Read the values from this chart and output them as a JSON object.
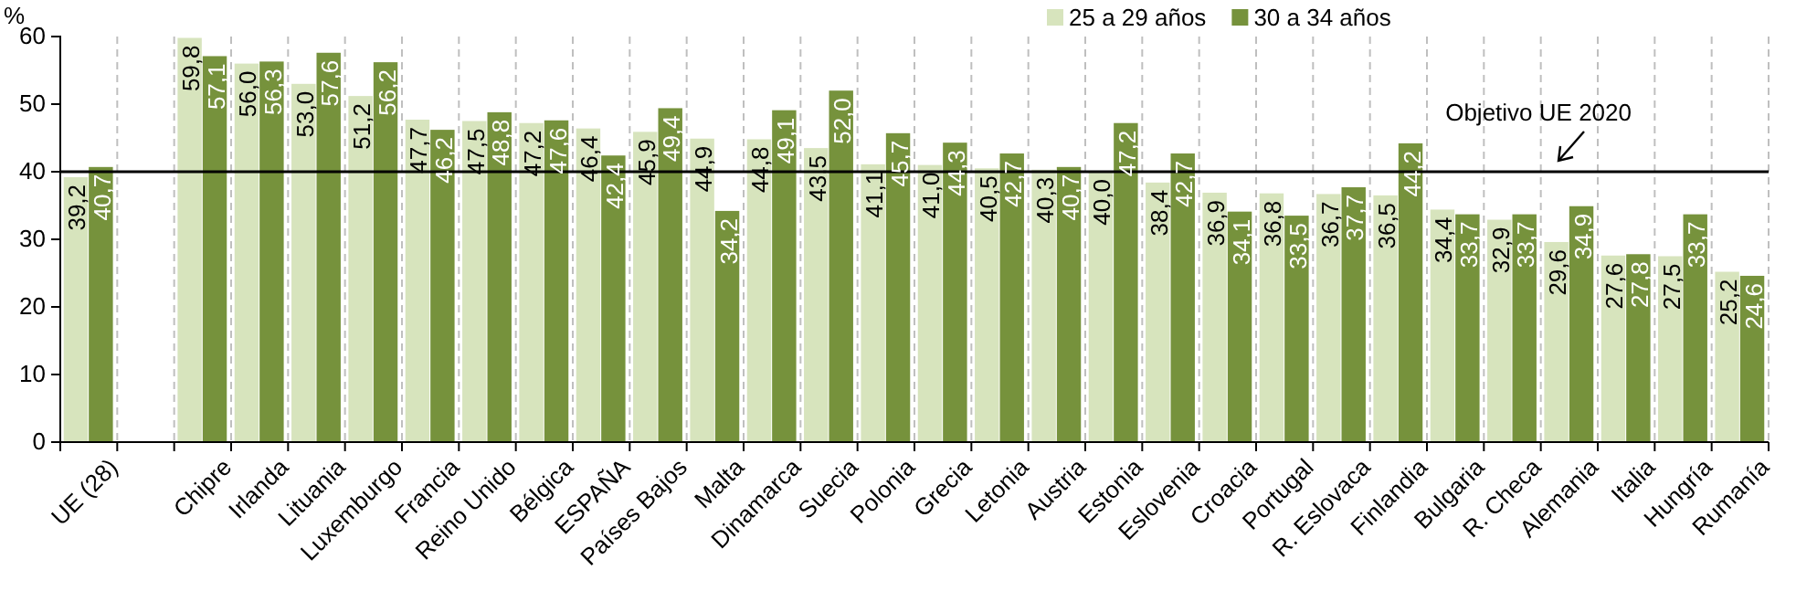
{
  "chart_data": {
    "type": "bar",
    "ylabel": "%",
    "categories": [
      "UE (28)",
      null,
      "Chipre",
      "Irlanda",
      "Lituania",
      "Luxemburgo",
      "Francia",
      "Reino Unido",
      "Bélgica",
      "ESPAÑA",
      "Países Bajos",
      "Malta",
      "Dinamarca",
      "Suecia",
      "Polonia",
      "Grecia",
      "Letonia",
      "Austria",
      "Estonia",
      "Eslovenia",
      "Croacia",
      "Portugal",
      "R. Eslovaca",
      "Finlandia",
      "Bulgaria",
      "R. Checa",
      "Alemania",
      "Italia",
      "Hungría",
      "Rumanía"
    ],
    "series": [
      {
        "name": "25 a 29 años",
        "color": "#d7e4bd",
        "values": [
          39.2,
          null,
          59.8,
          56.0,
          53.0,
          51.2,
          47.7,
          47.5,
          47.2,
          46.4,
          45.9,
          44.9,
          44.8,
          43.5,
          41.1,
          41.0,
          40.5,
          40.3,
          40.0,
          38.4,
          36.9,
          36.8,
          36.7,
          36.5,
          34.4,
          32.9,
          29.6,
          27.6,
          27.5,
          25.2
        ],
        "value_labels": [
          "39,2",
          null,
          "59,8",
          "56,0",
          "53,0",
          "51,2",
          "47,7",
          "47,5",
          "47,2",
          "46,4",
          "45,9",
          "44,9",
          "44,8",
          "43,5",
          "41,1",
          "41,0",
          "40,5",
          "40,3",
          "40,0",
          "38,4",
          "36,9",
          "36,8",
          "36,7",
          "36,5",
          "34,4",
          "32,9",
          "29,6",
          "27,6",
          "27,5",
          "25,2"
        ]
      },
      {
        "name": "30 a 34 años",
        "color": "#76923c",
        "values": [
          40.7,
          null,
          57.1,
          56.3,
          57.6,
          56.2,
          46.2,
          48.8,
          47.6,
          42.4,
          49.4,
          34.2,
          49.1,
          52.0,
          45.7,
          44.3,
          42.7,
          40.7,
          47.2,
          42.7,
          34.1,
          33.5,
          37.7,
          44.2,
          33.7,
          33.7,
          34.9,
          27.8,
          33.7,
          24.6
        ],
        "value_labels": [
          "40,7",
          null,
          "57,1",
          "56,3",
          "57,6",
          "56,2",
          "46,2",
          "48,8",
          "47,6",
          "42,4",
          "49,4",
          "34,2",
          "49,1",
          "52,0",
          "45,7",
          "44,3",
          "42,7",
          "40,7",
          "47,2",
          "42,7",
          "34,1",
          "33,5",
          "37,7",
          "44,2",
          "33,7",
          "33,7",
          "34,9",
          "27,8",
          "33,7",
          "24,6"
        ]
      }
    ],
    "ylim": [
      0,
      60
    ],
    "yticks": [
      0,
      10,
      20,
      30,
      40,
      50,
      60
    ],
    "ref_lines": [
      {
        "axis": "y",
        "value": 40,
        "label": "Objetivo UE 2020",
        "color": "#000000"
      }
    ],
    "grid": "x",
    "legend": "top right"
  }
}
